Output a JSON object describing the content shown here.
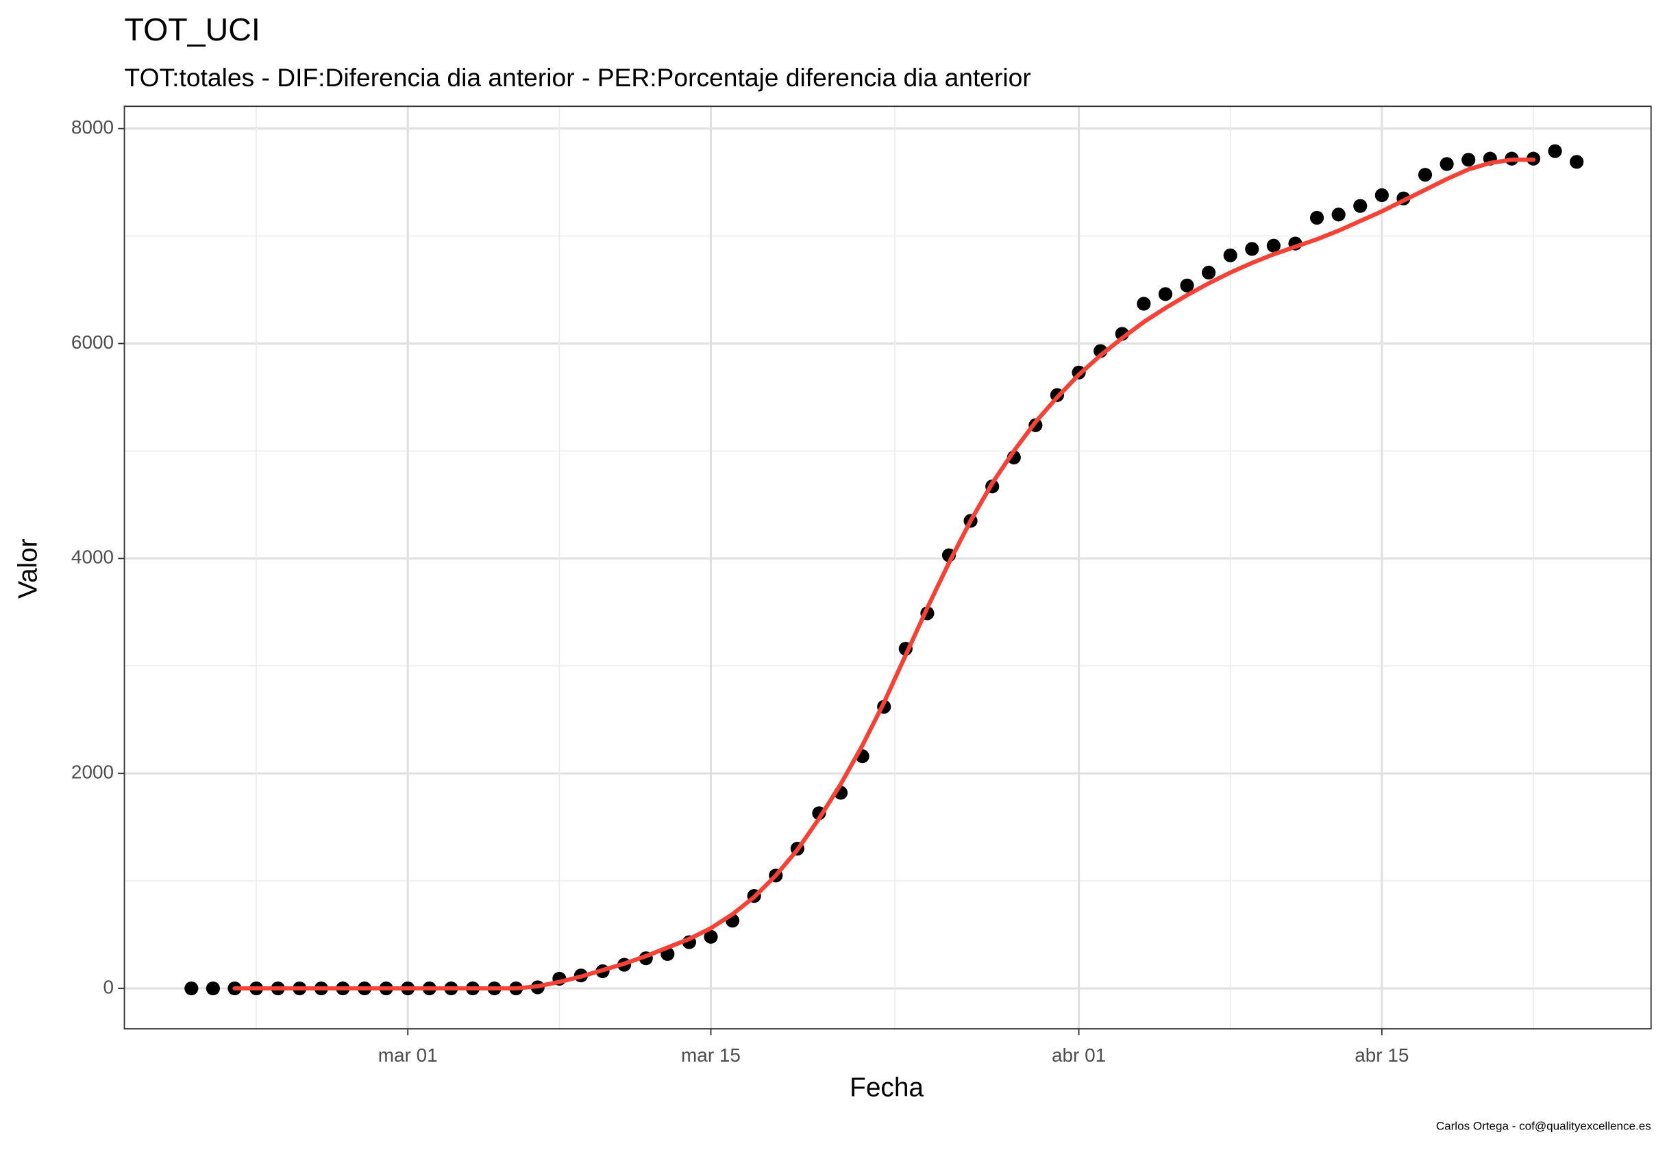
{
  "chart_data": {
    "type": "scatter",
    "title": "TOT_UCI",
    "subtitle": "TOT:totales - DIF:Diferencia dia anterior - PER:Porcentaje diferencia dia anterior",
    "xlabel": "Fecha",
    "ylabel": "Valor",
    "caption": "Carlos Ortega - cof@qualityexcellence.es",
    "x": [
      "feb 20",
      "feb 21",
      "feb 22",
      "feb 23",
      "feb 24",
      "feb 25",
      "feb 26",
      "feb 27",
      "feb 28",
      "feb 29",
      "mar 01",
      "mar 02",
      "mar 03",
      "mar 04",
      "mar 05",
      "mar 06",
      "mar 07",
      "mar 08",
      "mar 09",
      "mar 10",
      "mar 11",
      "mar 12",
      "mar 13",
      "mar 14",
      "mar 15",
      "mar 16",
      "mar 17",
      "mar 18",
      "mar 19",
      "mar 20",
      "mar 21",
      "mar 22",
      "mar 23",
      "mar 24",
      "mar 25",
      "mar 26",
      "mar 27",
      "mar 28",
      "mar 29",
      "mar 30",
      "mar 31",
      "abr 01",
      "abr 02",
      "abr 03",
      "abr 04",
      "abr 05",
      "abr 06",
      "abr 07",
      "abr 08",
      "abr 09",
      "abr 10",
      "abr 11",
      "abr 12",
      "abr 13",
      "abr 14",
      "abr 15",
      "abr 16",
      "abr 17",
      "abr 18",
      "abr 19",
      "abr 20",
      "abr 21",
      "abr 22",
      "abr 23",
      "abr 24"
    ],
    "xticks": [
      "mar 01",
      "mar 15",
      "abr 01",
      "abr 15"
    ],
    "ylim": [
      -376,
      8207
    ],
    "yticks": [
      0,
      2000,
      4000,
      6000,
      8000
    ],
    "grid": true,
    "series": [
      {
        "type": "scatter",
        "color": "#000000",
        "values": [
          0,
          0,
          0,
          0,
          0,
          0,
          0,
          0,
          0,
          0,
          0,
          0,
          0,
          0,
          0,
          0,
          10,
          90,
          120,
          160,
          220,
          280,
          320,
          430,
          480,
          630,
          860,
          1050,
          1300,
          1630,
          1820,
          2160,
          2620,
          3160,
          3490,
          4030,
          4350,
          4670,
          4940,
          5240,
          5520,
          5730,
          5930,
          6090,
          6370,
          6460,
          6540,
          6660,
          6820,
          6880,
          6910,
          6930,
          7170,
          7200,
          7280,
          7380,
          7350,
          7570,
          7670,
          7710,
          7720,
          7720,
          7720,
          7790,
          7690
        ]
      },
      {
        "type": "line",
        "color": "#f44336",
        "values": [
          null,
          null,
          0,
          0,
          0,
          0,
          0,
          0,
          0,
          0,
          0,
          0,
          0,
          0,
          0,
          0,
          20,
          60,
          110,
          170,
          230,
          300,
          380,
          460,
          560,
          690,
          850,
          1050,
          1290,
          1580,
          1900,
          2260,
          2660,
          3100,
          3540,
          3960,
          4350,
          4700,
          5000,
          5270,
          5500,
          5710,
          5890,
          6050,
          6200,
          6330,
          6450,
          6560,
          6660,
          6750,
          6830,
          6900,
          6970,
          7050,
          7140,
          7230,
          7330,
          7430,
          7530,
          7620,
          7680,
          7710,
          7710,
          null,
          null
        ]
      }
    ]
  }
}
